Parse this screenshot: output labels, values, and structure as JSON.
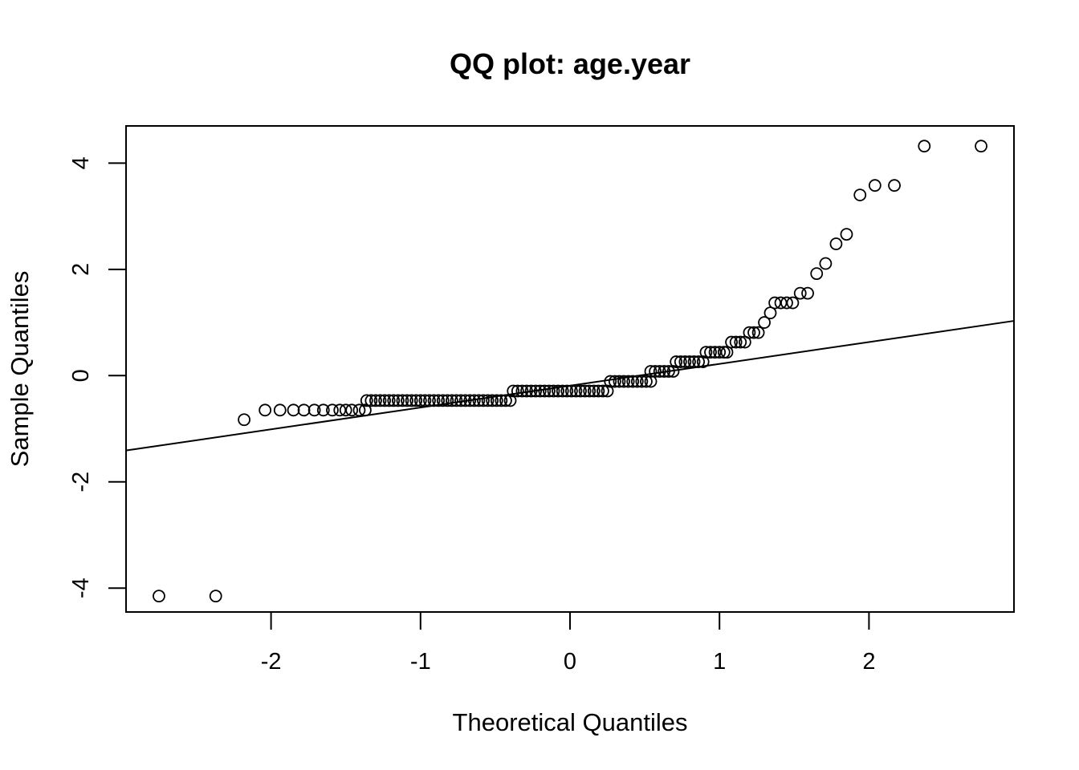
{
  "chart_data": {
    "type": "scatter",
    "title": "QQ plot: age.year",
    "xlabel": "Theoretical Quantiles",
    "ylabel": "Sample Quantiles",
    "xlim": [
      -2.97,
      2.97
    ],
    "ylim": [
      -4.45,
      4.7
    ],
    "xticks": [
      -2,
      -1,
      0,
      1,
      2
    ],
    "yticks": [
      -4,
      -2,
      0,
      2,
      4
    ],
    "xtick_labels": [
      "-2",
      "-1",
      "0",
      "1",
      "2"
    ],
    "ytick_labels": [
      "-4",
      "-2",
      "0",
      "2",
      "4"
    ],
    "grid": false,
    "reference_line": {
      "x": [
        -2.97,
        2.97
      ],
      "y": [
        -1.41,
        1.03
      ]
    },
    "points": {
      "x": [
        -2.75,
        -2.37,
        -2.18,
        -2.04,
        -1.94,
        -1.85,
        -1.78,
        -1.71,
        -1.65,
        -1.59,
        -1.54,
        -1.5,
        -1.46,
        -1.41,
        -1.37,
        -1.36,
        -1.33,
        -1.3,
        -1.27,
        -1.24,
        -1.21,
        -1.18,
        -1.15,
        -1.12,
        -1.09,
        -1.06,
        -1.03,
        -1,
        -0.97,
        -0.94,
        -0.91,
        -0.88,
        -0.85,
        -0.82,
        -0.79,
        -0.76,
        -0.73,
        -0.7,
        -0.67,
        -0.64,
        -0.61,
        -0.58,
        -0.55,
        -0.52,
        -0.49,
        -0.46,
        -0.43,
        -0.4,
        -0.38,
        -0.35,
        -0.32,
        -0.29,
        -0.26,
        -0.23,
        -0.2,
        -0.17,
        -0.14,
        -0.11,
        -0.08,
        -0.05,
        -0.02,
        0.01,
        0.04,
        0.07,
        0.1,
        0.13,
        0.16,
        0.19,
        0.22,
        0.25,
        0.27,
        0.3,
        0.33,
        0.36,
        0.39,
        0.42,
        0.45,
        0.48,
        0.51,
        0.54,
        0.54,
        0.57,
        0.6,
        0.63,
        0.66,
        0.69,
        0.71,
        0.74,
        0.77,
        0.8,
        0.83,
        0.86,
        0.89,
        0.91,
        0.94,
        0.97,
        1,
        1.03,
        1.05,
        1.08,
        1.11,
        1.14,
        1.17,
        1.2,
        1.23,
        1.26,
        1.3,
        1.34,
        1.37,
        1.41,
        1.45,
        1.49,
        1.54,
        1.59,
        1.65,
        1.71,
        1.78,
        1.85,
        1.94,
        2.04,
        2.17,
        2.37,
        2.75
      ],
      "y": [
        -4.15,
        -4.15,
        -0.83,
        -0.65,
        -0.65,
        -0.65,
        -0.65,
        -0.65,
        -0.65,
        -0.65,
        -0.65,
        -0.65,
        -0.65,
        -0.65,
        -0.65,
        -0.47,
        -0.47,
        -0.47,
        -0.47,
        -0.47,
        -0.47,
        -0.47,
        -0.47,
        -0.47,
        -0.47,
        -0.47,
        -0.47,
        -0.47,
        -0.47,
        -0.47,
        -0.47,
        -0.47,
        -0.47,
        -0.47,
        -0.47,
        -0.47,
        -0.47,
        -0.47,
        -0.47,
        -0.47,
        -0.47,
        -0.47,
        -0.47,
        -0.47,
        -0.47,
        -0.47,
        -0.47,
        -0.47,
        -0.29,
        -0.29,
        -0.29,
        -0.29,
        -0.29,
        -0.29,
        -0.29,
        -0.29,
        -0.29,
        -0.29,
        -0.29,
        -0.29,
        -0.29,
        -0.29,
        -0.29,
        -0.29,
        -0.29,
        -0.29,
        -0.29,
        -0.29,
        -0.29,
        -0.29,
        -0.11,
        -0.11,
        -0.11,
        -0.11,
        -0.11,
        -0.11,
        -0.11,
        -0.11,
        -0.11,
        -0.11,
        0.08,
        0.08,
        0.08,
        0.08,
        0.08,
        0.08,
        0.26,
        0.26,
        0.26,
        0.26,
        0.26,
        0.26,
        0.26,
        0.44,
        0.44,
        0.44,
        0.44,
        0.44,
        0.44,
        0.63,
        0.63,
        0.63,
        0.63,
        0.81,
        0.81,
        0.81,
        1.0,
        1.18,
        1.37,
        1.37,
        1.37,
        1.37,
        1.55,
        1.55,
        1.92,
        2.11,
        2.48,
        2.66,
        3.4,
        3.58,
        3.58,
        4.32,
        4.32
      ]
    }
  }
}
